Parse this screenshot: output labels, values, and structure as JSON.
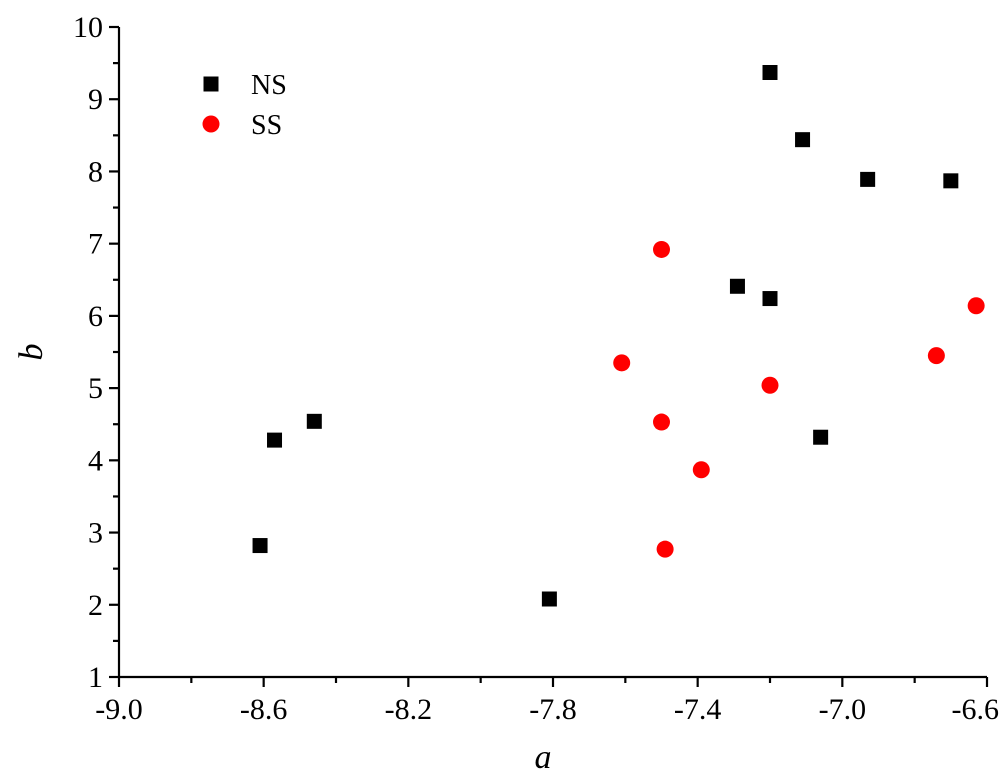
{
  "chart_data": {
    "type": "scatter",
    "title": "",
    "xlabel": "a",
    "ylabel": "b",
    "xlim": [
      -9.0,
      -6.6
    ],
    "ylim": [
      1,
      10
    ],
    "xticks": [
      "-9.0",
      "-8.6",
      "-8.2",
      "-7.8",
      "-7.4",
      "-7.0",
      "-6.6"
    ],
    "yticks": [
      "1",
      "2",
      "3",
      "4",
      "5",
      "6",
      "7",
      "8",
      "9",
      "10"
    ],
    "legend_position": "top-left",
    "grid": false,
    "series": [
      {
        "name": "NS",
        "marker": "square",
        "color": "#000000",
        "points": [
          {
            "x": -8.61,
            "y": 2.82
          },
          {
            "x": -8.57,
            "y": 4.28
          },
          {
            "x": -8.46,
            "y": 4.54
          },
          {
            "x": -7.81,
            "y": 2.08
          },
          {
            "x": -7.29,
            "y": 6.41
          },
          {
            "x": -7.2,
            "y": 9.37
          },
          {
            "x": -7.2,
            "y": 6.24
          },
          {
            "x": -7.11,
            "y": 8.44
          },
          {
            "x": -7.06,
            "y": 4.32
          },
          {
            "x": -6.93,
            "y": 7.89
          },
          {
            "x": -6.7,
            "y": 7.87
          }
        ]
      },
      {
        "name": "SS",
        "marker": "circle",
        "color": "#ff0000",
        "points": [
          {
            "x": -7.61,
            "y": 5.35
          },
          {
            "x": -7.5,
            "y": 6.92
          },
          {
            "x": -7.5,
            "y": 4.53
          },
          {
            "x": -7.49,
            "y": 2.77
          },
          {
            "x": -7.39,
            "y": 3.87
          },
          {
            "x": -7.2,
            "y": 5.04
          },
          {
            "x": -6.74,
            "y": 5.45
          },
          {
            "x": -6.63,
            "y": 6.14
          }
        ]
      }
    ]
  }
}
